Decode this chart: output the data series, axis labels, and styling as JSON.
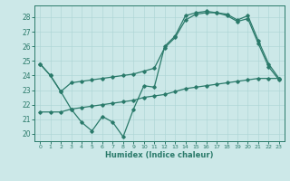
{
  "xlabel": "Humidex (Indice chaleur)",
  "xlim": [
    -0.5,
    23.5
  ],
  "ylim": [
    19.5,
    28.8
  ],
  "yticks": [
    20,
    21,
    22,
    23,
    24,
    25,
    26,
    27,
    28
  ],
  "xticks": [
    0,
    1,
    2,
    3,
    4,
    5,
    6,
    7,
    8,
    9,
    10,
    11,
    12,
    13,
    14,
    15,
    16,
    17,
    18,
    19,
    20,
    21,
    22,
    23
  ],
  "bg_color": "#cce8e8",
  "line_color": "#2a7a6a",
  "line1_y": [
    24.8,
    24.0,
    22.9,
    21.7,
    20.8,
    20.2,
    21.2,
    20.8,
    19.8,
    21.7,
    23.3,
    23.2,
    26.0,
    26.7,
    28.1,
    28.3,
    28.4,
    28.3,
    28.2,
    27.8,
    28.1,
    26.4,
    24.8,
    23.8
  ],
  "line2_y": [
    24.8,
    24.0,
    22.9,
    23.5,
    23.6,
    23.7,
    23.8,
    23.9,
    24.0,
    24.1,
    24.3,
    24.5,
    25.9,
    26.6,
    27.8,
    28.2,
    28.3,
    28.3,
    28.1,
    27.7,
    27.9,
    26.2,
    24.6,
    23.7
  ],
  "line3_y": [
    21.5,
    21.5,
    21.5,
    21.7,
    21.8,
    21.9,
    22.0,
    22.1,
    22.2,
    22.3,
    22.5,
    22.6,
    22.7,
    22.9,
    23.1,
    23.2,
    23.3,
    23.4,
    23.5,
    23.6,
    23.7,
    23.8,
    23.8,
    23.8
  ]
}
